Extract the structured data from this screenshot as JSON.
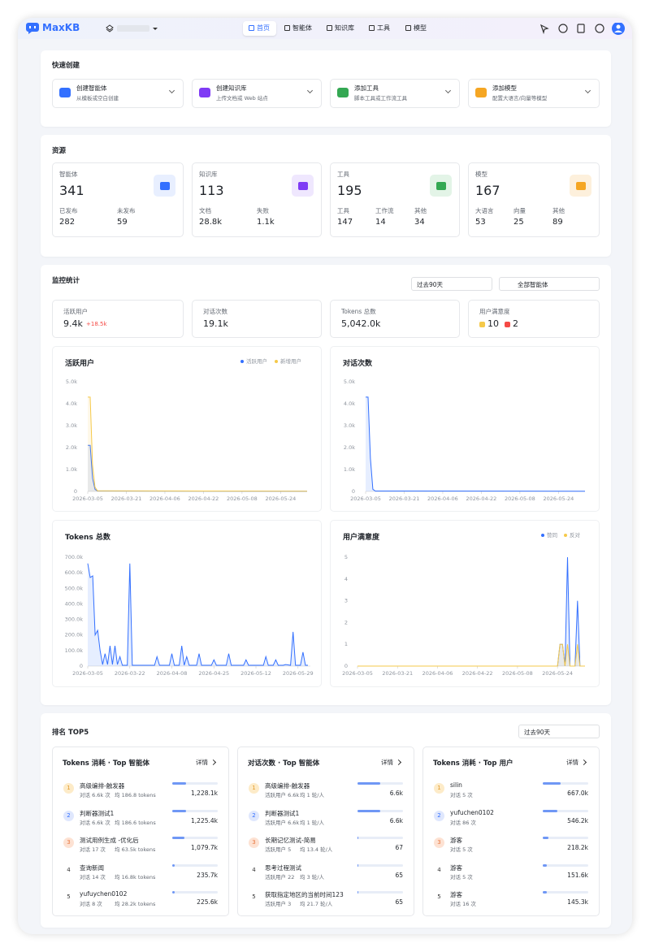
{
  "header": {
    "brand": "MaxKB",
    "nav": [
      "首页",
      "智能体",
      "知识库",
      "工具",
      "模型"
    ]
  },
  "quick_create": {
    "title": "快速创建",
    "items": [
      {
        "label": "创建智能体",
        "desc": "从模板或空白创建"
      },
      {
        "label": "创建知识库",
        "desc": "上传文档或 Web 站点"
      },
      {
        "label": "添加工具",
        "desc": "脚本工具或工作流工具"
      },
      {
        "label": "添加模型",
        "desc": "配置大语言/向量等模型"
      }
    ]
  },
  "resources": {
    "title": "资源",
    "cards": [
      {
        "label": "智能体",
        "value": "341",
        "sub": [
          {
            "label": "已发布",
            "value": "282"
          },
          {
            "label": "未发布",
            "value": "59"
          }
        ]
      },
      {
        "label": "知识库",
        "value": "113",
        "sub": [
          {
            "label": "文档",
            "value": "28.8k"
          },
          {
            "label": "失败",
            "value": "1.1k"
          }
        ]
      },
      {
        "label": "工具",
        "value": "195",
        "sub": [
          {
            "label": "工具",
            "value": "147"
          },
          {
            "label": "工作流",
            "value": "14"
          },
          {
            "label": "其他",
            "value": "34"
          }
        ]
      },
      {
        "label": "模型",
        "value": "167",
        "sub": [
          {
            "label": "大语言",
            "value": "53"
          },
          {
            "label": "向量",
            "value": "25"
          },
          {
            "label": "其他",
            "value": "89"
          }
        ]
      }
    ]
  },
  "monitor": {
    "title": "监控统计",
    "period": "过去90天",
    "scope": "全部智能体",
    "stats": [
      {
        "label": "活跃用户",
        "value": "9.4k",
        "delta": "+18.5k"
      },
      {
        "label": "对话次数",
        "value": "19.1k"
      },
      {
        "label": "Tokens 总数",
        "value": "5,042.0k"
      },
      {
        "label": "用户满意度",
        "likes": 10,
        "dislikes": 2
      }
    ],
    "charts": [
      {
        "type": "line",
        "title": "活跃用户",
        "area": true,
        "grid": false,
        "x": [
          0,
          1,
          2,
          3,
          4,
          91
        ],
        "xlim": [
          0,
          91
        ],
        "xticks": [
          {
            "value": 0,
            "label": "2026-03-05"
          },
          {
            "value": 16,
            "label": "2026-03-21"
          },
          {
            "value": 32,
            "label": "2026-04-06"
          },
          {
            "value": 48,
            "label": "2026-04-22"
          },
          {
            "value": 64,
            "label": "2026-05-08"
          },
          {
            "value": 80,
            "label": "2026-05-24"
          }
        ],
        "ylim": [
          0,
          5000
        ],
        "yticks": [
          0,
          {
            "value": 1000,
            "label": "1.0k"
          },
          {
            "value": 2000,
            "label": "2.0k"
          },
          {
            "value": 3000,
            "label": "3.0k"
          },
          {
            "value": 4000,
            "label": "4.0k"
          },
          {
            "value": 5000,
            "label": "5.0k"
          }
        ],
        "series": [
          {
            "name": "活跃用户",
            "color": "#3370ff",
            "values": [
              2100,
              2100,
              600,
              100,
              20,
              10
            ]
          },
          {
            "name": "新增用户",
            "color": "#f5c94a",
            "values": [
              4300,
              4300,
              1200,
              200,
              30,
              10
            ]
          }
        ]
      },
      {
        "type": "line",
        "title": "对话次数",
        "area": true,
        "grid": false,
        "x": [
          0,
          1,
          2,
          3,
          4,
          91
        ],
        "xlim": [
          0,
          91
        ],
        "xticks": [
          {
            "value": 0,
            "label": "2026-03-05"
          },
          {
            "value": 16,
            "label": "2026-03-21"
          },
          {
            "value": 32,
            "label": "2026-04-06"
          },
          {
            "value": 48,
            "label": "2026-04-22"
          },
          {
            "value": 64,
            "label": "2026-05-08"
          },
          {
            "value": 80,
            "label": "2026-05-24"
          }
        ],
        "ylim": [
          0,
          5000
        ],
        "yticks": [
          0,
          {
            "value": 1000,
            "label": "1.0k"
          },
          {
            "value": 2000,
            "label": "2.0k"
          },
          {
            "value": 3000,
            "label": "3.0k"
          },
          {
            "value": 4000,
            "label": "4.0k"
          },
          {
            "value": 5000,
            "label": "5.0k"
          }
        ],
        "series": [
          {
            "color": "#3370ff",
            "values": [
              4300,
              4300,
              1500,
              100,
              20,
              10
            ]
          }
        ]
      },
      {
        "type": "line",
        "title": "Tokens 总数",
        "area": true,
        "grid": false,
        "x": [
          0,
          1,
          2,
          3,
          4,
          5,
          6,
          7,
          8,
          9,
          10,
          11,
          12,
          13,
          14,
          16,
          17,
          18,
          20,
          27,
          28,
          29,
          33,
          34,
          35,
          37,
          38,
          39,
          40,
          41,
          44,
          45,
          46,
          50,
          51,
          52,
          56,
          57,
          58,
          63,
          64,
          65,
          71,
          72,
          73,
          75,
          76,
          77,
          79,
          80,
          82,
          83,
          84,
          86,
          87,
          88,
          89
        ],
        "xlim": [
          0,
          90
        ],
        "xticks": [
          {
            "value": 0,
            "label": "2026-03-05"
          },
          {
            "value": 17,
            "label": "2026-03-22"
          },
          {
            "value": 34,
            "label": "2026-04-08"
          },
          {
            "value": 51,
            "label": "2026-04-25"
          },
          {
            "value": 68,
            "label": "2026-05-12"
          },
          {
            "value": 85,
            "label": "2026-05-29"
          }
        ],
        "ylim": [
          0,
          700000
        ],
        "yticks": [
          0,
          {
            "value": 100000,
            "label": "100.0k"
          },
          {
            "value": 200000,
            "label": "200.0k"
          },
          {
            "value": 300000,
            "label": "300.0k"
          },
          {
            "value": 400000,
            "label": "400.0k"
          },
          {
            "value": 500000,
            "label": "500.0k"
          },
          {
            "value": 600000,
            "label": "600.0k"
          },
          {
            "value": 700000,
            "label": "700.0k"
          }
        ],
        "series": [
          {
            "color": "#3370ff",
            "values": [
              660000,
              570000,
              580000,
              200000,
              230000,
              100000,
              10000,
              80000,
              10000,
              130000,
              10000,
              130000,
              10000,
              60000,
              5000,
              5000,
              660000,
              5000,
              5000,
              5000,
              60000,
              5000,
              5000,
              80000,
              5000,
              5000,
              130000,
              5000,
              60000,
              5000,
              5000,
              80000,
              5000,
              5000,
              40000,
              5000,
              5000,
              80000,
              5000,
              5000,
              40000,
              5000,
              5000,
              60000,
              5000,
              5000,
              40000,
              5000,
              5000,
              10000,
              5000,
              220000,
              5000,
              5000,
              90000,
              5000,
              5000
            ]
          }
        ]
      },
      {
        "type": "line",
        "title": "用户满意度",
        "area": true,
        "grid": false,
        "x": [
          0,
          80,
          81,
          82,
          83,
          84,
          85,
          87,
          88,
          89,
          91
        ],
        "xlim": [
          0,
          91
        ],
        "xticks": [
          {
            "value": 0,
            "label": "2026-03-05"
          },
          {
            "value": 16,
            "label": "2026-03-21"
          },
          {
            "value": 32,
            "label": "2026-04-06"
          },
          {
            "value": 48,
            "label": "2026-04-22"
          },
          {
            "value": 64,
            "label": "2026-05-08"
          },
          {
            "value": 80,
            "label": "2026-05-24"
          }
        ],
        "ylim": [
          0,
          5
        ],
        "yticks": [
          0,
          1,
          2,
          3,
          4,
          5
        ],
        "series": [
          {
            "name": "赞同",
            "color": "#3370ff",
            "values": [
              0,
              0,
              1,
              1,
              0,
              5,
              0,
              0,
              3,
              0,
              0
            ]
          },
          {
            "name": "反对",
            "color": "#f5c94a",
            "values": [
              0,
              0,
              1,
              1,
              0,
              1,
              0,
              0,
              1,
              0,
              0
            ]
          }
        ]
      }
    ]
  },
  "ranking": {
    "title": "排名 TOP5",
    "period": "过去90天",
    "detail": "详情",
    "panels": [
      {
        "title": "Tokens 消耗 · Top 智能体",
        "rows": [
          {
            "rank": 1,
            "name": "高级编排-触发器",
            "meta": [
              "对话 6.6k 次",
              "均 186.8 tokens"
            ],
            "value": "1,228.1k"
          },
          {
            "rank": 2,
            "name": "判断器测试1",
            "meta": [
              "对话 6.6k 次",
              "均 186.6 tokens"
            ],
            "value": "1,225.4k"
          },
          {
            "rank": 3,
            "name": "测试用例生成 -优化后",
            "meta": [
              "对话 17 次",
              "均 63.5k tokens"
            ],
            "value": "1,079.7k"
          },
          {
            "rank": 4,
            "name": "查询新闻",
            "meta": [
              "对话 14 次",
              "均 16.8k tokens"
            ],
            "value": "235.7k"
          },
          {
            "rank": 5,
            "name": "yufuychen0102",
            "meta": [
              "对话 8 次",
              "均 28.2k tokens"
            ],
            "value": "225.6k"
          }
        ]
      },
      {
        "title": "对话次数 · Top 智能体",
        "rows": [
          {
            "rank": 1,
            "name": "高级编排-触发器",
            "meta": [
              "活跃用户 6.6k",
              "均 1 轮/人"
            ],
            "value": "6.6k"
          },
          {
            "rank": 2,
            "name": "判断器测试1",
            "meta": [
              "活跃用户 6.6k",
              "均 1 轮/人"
            ],
            "value": "6.6k"
          },
          {
            "rank": 3,
            "name": "长期记忆测试-简易",
            "meta": [
              "活跃用户 5",
              "均 13.4 轮/人"
            ],
            "value": "67"
          },
          {
            "rank": 4,
            "name": "思考过程测试",
            "meta": [
              "活跃用户 22",
              "均 3 轮/人"
            ],
            "value": "65"
          },
          {
            "rank": 5,
            "name": "获取指定地区的当前时间123",
            "meta": [
              "活跃用户 3",
              "均 21.7 轮/人"
            ],
            "value": "65"
          }
        ]
      },
      {
        "title": "Tokens 消耗 · Top 用户",
        "rows": [
          {
            "rank": 1,
            "name": "silin",
            "meta": [
              "对话 5 次"
            ],
            "value": "667.0k"
          },
          {
            "rank": 2,
            "name": "yufuchen0102",
            "meta": [
              "对话 86 次"
            ],
            "value": "546.2k"
          },
          {
            "rank": 3,
            "name": "游客",
            "meta": [
              "对话 5 次"
            ],
            "value": "218.2k"
          },
          {
            "rank": 4,
            "name": "游客",
            "meta": [
              "对话 5 次"
            ],
            "value": "151.6k"
          },
          {
            "rank": 5,
            "name": "游客",
            "meta": [
              "对话 16 次"
            ],
            "value": "145.3k"
          }
        ]
      }
    ]
  }
}
